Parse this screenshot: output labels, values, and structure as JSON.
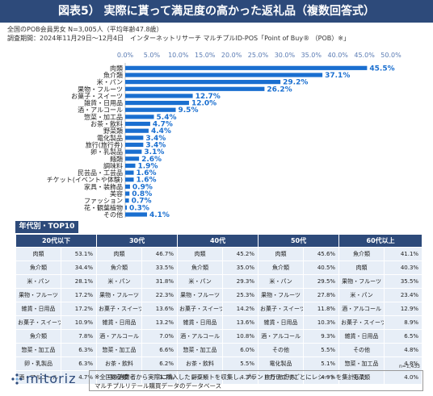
{
  "header": {
    "title": "図表5） 実際に貰って満足度の高かった返礼品（複数回答式）",
    "meta_line1": "全国のPOB会員男女 N=3,005人（平均年齢47.8歳）",
    "meta_line2": "調査期間：2024年11月29日～12月4日　インターネットリサーチ マルチプルID-POS「Point of Buy® （POB）※」"
  },
  "chart_data": {
    "type": "bar",
    "orientation": "horizontal",
    "categories": [
      "肉類",
      "魚介類",
      "米・パン",
      "果物・フルーツ",
      "お菓子・スイーツ",
      "雑貨・日用品",
      "酒・アルコール",
      "惣菜・加工品",
      "お茶・飲料",
      "野菜類",
      "電化製品",
      "旅行(旅行券)",
      "卵・乳製品",
      "麺類",
      "調味料",
      "民芸品・工芸品",
      "チケット(イベントや体験)",
      "家具・装飾品",
      "美容",
      "ファッション",
      "花・観葉植物",
      "その他"
    ],
    "values": [
      45.5,
      37.1,
      29.2,
      26.2,
      12.7,
      12.0,
      9.5,
      5.4,
      4.7,
      4.4,
      3.4,
      3.4,
      3.1,
      2.6,
      1.9,
      1.6,
      1.6,
      0.9,
      0.8,
      0.7,
      0.3,
      4.1
    ],
    "value_labels": [
      "45.5%",
      "37.1%",
      "29.2%",
      "26.2%",
      "12.7%",
      "12.0%",
      "9.5%",
      "5.4%",
      "4.7%",
      "4.4%",
      "3.4%",
      "3.4%",
      "3.1%",
      "2.6%",
      "1.9%",
      "1.6%",
      "1.6%",
      "0.9%",
      "0.8%",
      "0.7%",
      "0.3%",
      "4.1%"
    ],
    "xlim": [
      0,
      50
    ],
    "xticks": [
      "0.0%",
      "5.0%",
      "10.0%",
      "15.0%",
      "20.0%",
      "25.0%",
      "30.0%",
      "35.0%",
      "40.0%",
      "45.0%",
      "50.0%"
    ],
    "bar_color": "#1a6fd0",
    "grid": false,
    "legend": "none"
  },
  "table": {
    "badge": "年代別・TOP10",
    "headers": [
      "20代以下",
      "30代",
      "40代",
      "50代",
      "60代以上"
    ],
    "rows": [
      [
        [
          "肉類",
          "53.1%"
        ],
        [
          "肉類",
          "46.7%"
        ],
        [
          "肉類",
          "45.2%"
        ],
        [
          "肉類",
          "45.6%"
        ],
        [
          "魚介類",
          "41.1%"
        ]
      ],
      [
        [
          "魚介類",
          "34.4%"
        ],
        [
          "魚介類",
          "33.5%"
        ],
        [
          "魚介類",
          "35.0%"
        ],
        [
          "魚介類",
          "40.5%"
        ],
        [
          "肉類",
          "40.3%"
        ]
      ],
      [
        [
          "米・パン",
          "28.1%"
        ],
        [
          "米・パン",
          "31.8%"
        ],
        [
          "米・パン",
          "29.3%"
        ],
        [
          "米・パン",
          "29.5%"
        ],
        [
          "果物・フルーツ",
          "35.5%"
        ]
      ],
      [
        [
          "果物・フルーツ",
          "17.2%"
        ],
        [
          "果物・フルーツ",
          "22.3%"
        ],
        [
          "果物・フルーツ",
          "25.3%"
        ],
        [
          "果物・フルーツ",
          "27.8%"
        ],
        [
          "米・パン",
          "23.4%"
        ]
      ],
      [
        [
          "雑貨・日用品",
          "17.2%"
        ],
        [
          "お菓子・スイーツ",
          "13.6%"
        ],
        [
          "お菓子・スイーツ",
          "14.2%"
        ],
        [
          "お菓子・スイーツ",
          "11.8%"
        ],
        [
          "酒・アルコール",
          "12.9%"
        ]
      ],
      [
        [
          "お菓子・スイーツ",
          "10.9%"
        ],
        [
          "雑貨・日用品",
          "13.2%"
        ],
        [
          "雑貨・日用品",
          "13.6%"
        ],
        [
          "雑貨・日用品",
          "10.3%"
        ],
        [
          "お菓子・スイーツ",
          "8.9%"
        ]
      ],
      [
        [
          "魚介類",
          "7.8%"
        ],
        [
          "酒・アルコール",
          "7.0%"
        ],
        [
          "酒・アルコール",
          "10.8%"
        ],
        [
          "酒・アルコール",
          "9.3%"
        ],
        [
          "雑貨・日用品",
          "6.5%"
        ]
      ],
      [
        [
          "惣菜・加工品",
          "6.3%"
        ],
        [
          "惣菜・加工品",
          "6.6%"
        ],
        [
          "惣菜・加工品",
          "6.0%"
        ],
        [
          "その他",
          "5.5%"
        ],
        [
          "その他",
          "4.8%"
        ]
      ],
      [
        [
          "卵・乳製品",
          "6.3%"
        ],
        [
          "お茶・飲料",
          "6.2%"
        ],
        [
          "お茶・飲料",
          "5.5%"
        ],
        [
          "電化製品",
          "5.1%"
        ],
        [
          "惣菜・加工品",
          "4.8%"
        ]
      ],
      [
        [
          "酒・アルコール",
          "4.7%"
        ],
        [
          "野菜類",
          "3.7%"
        ],
        [
          "野菜類",
          "4.3%"
        ],
        [
          "旅行(旅行券)",
          "4.9%"
        ],
        [
          "野菜類",
          "4.0%"
        ]
      ]
    ],
    "n_note": "n=1,433"
  },
  "footer": {
    "logo_text": "mitoriz",
    "note_line1": "※全国の消費者から実際に購入したレシートを収集し、ブランドカテゴリごとにレシートを集計した",
    "note_line2": "マルチプルリテール購買データのデータベース"
  }
}
